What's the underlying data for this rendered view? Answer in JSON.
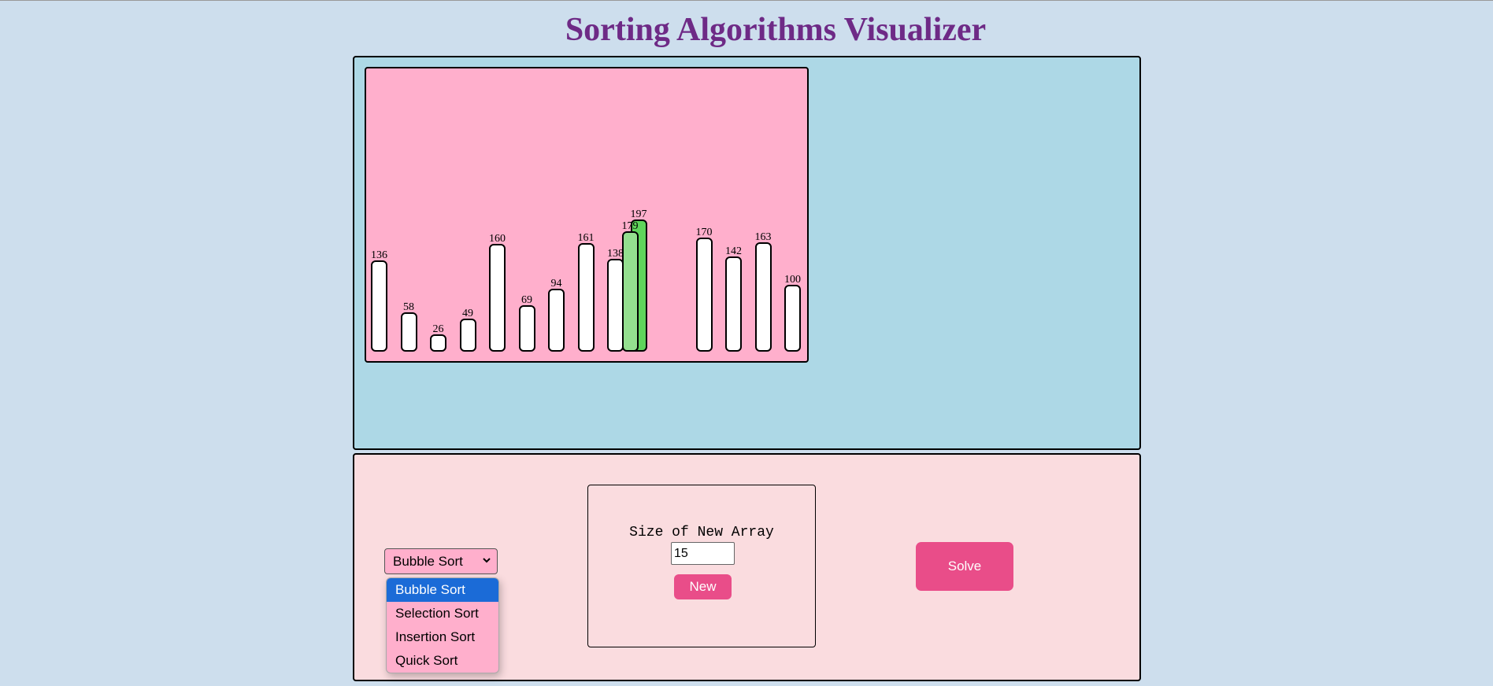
{
  "header": {
    "title": "Sorting Algorithms Visualizer"
  },
  "visualizer": {
    "bars": [
      {
        "value": 136,
        "state": "default"
      },
      {
        "value": 58,
        "state": "default"
      },
      {
        "value": 26,
        "state": "default"
      },
      {
        "value": 49,
        "state": "default"
      },
      {
        "value": 160,
        "state": "default"
      },
      {
        "value": 69,
        "state": "default"
      },
      {
        "value": 94,
        "state": "default"
      },
      {
        "value": 161,
        "state": "default"
      },
      {
        "value": 138,
        "state": "default"
      },
      {
        "value": 197,
        "state": "swap"
      },
      {
        "value": 179,
        "state": "compare"
      },
      {
        "value": 170,
        "state": "default"
      },
      {
        "value": 142,
        "state": "default"
      },
      {
        "value": 163,
        "state": "default"
      },
      {
        "value": 100,
        "state": "default"
      }
    ],
    "colors": {
      "default": "#ffffff",
      "compare": "#94df8f",
      "swap": "#5fd45b"
    }
  },
  "controls": {
    "algorithm_select": {
      "selected": "Bubble Sort",
      "options": [
        "Bubble Sort",
        "Selection Sort",
        "Insertion Sort",
        "Quick Sort"
      ]
    },
    "size_label": "Size of New Array",
    "size_value": "15",
    "new_label": "New",
    "solve_label": "Solve"
  }
}
